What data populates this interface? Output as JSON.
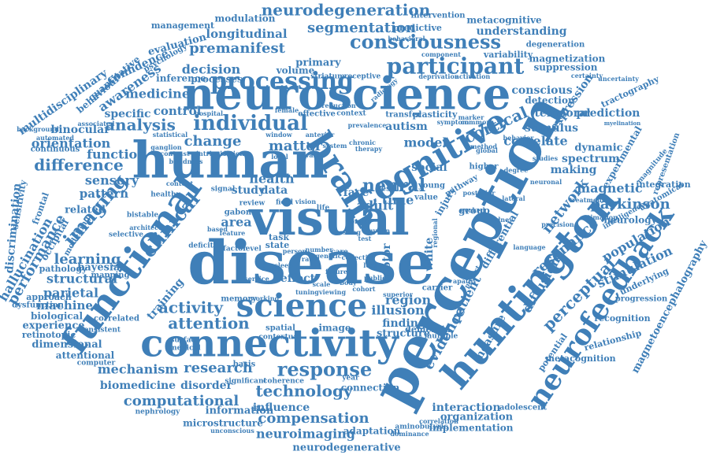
{
  "word_color": "#3f7fb8",
  "words": [
    "disease",
    "visual",
    "human",
    "neuroscience",
    "perception",
    "connectivity",
    "huntington",
    "functional",
    "brain",
    "cognitive",
    "science",
    "processing",
    "neurofeedback",
    "participant",
    "consciousness",
    "individual",
    "neural",
    "imaging",
    "clinical",
    "analysis",
    "difference",
    "cortical",
    "network",
    "perceptual",
    "parkinson",
    "resonance",
    "population",
    "magnetic",
    "diffusion",
    "stimulation",
    "neurodegeneration",
    "segmentation",
    "premanifest",
    "longitudinal",
    "medicine",
    "awareness",
    "control",
    "decision",
    "change",
    "matter",
    "health",
    "adult",
    "autism",
    "model",
    "social",
    "temporal",
    "conscious",
    "understanding",
    "metacognitive",
    "predictive",
    "primary",
    "management",
    "modulation",
    "intervention",
    "research",
    "response",
    "technology",
    "attention",
    "mechanism",
    "biomedicine",
    "disorder",
    "computational",
    "compensation",
    "neuroimaging",
    "neurodegenerative",
    "adaptation",
    "implementation",
    "organization",
    "interaction",
    "influence",
    "microstructure",
    "information",
    "evidence",
    "patient",
    "measure",
    "dementia",
    "finding",
    "structure",
    "illusion",
    "region",
    "activity",
    "training",
    "structural",
    "learning",
    "performance",
    "hallucination",
    "discrimination",
    "multidisciplinary",
    "orientation",
    "function",
    "sensory",
    "pattern",
    "related",
    "continuous",
    "binocular",
    "specific",
    "parietal",
    "machine",
    "biological",
    "experience",
    "dimensional",
    "attentional",
    "retinotopic",
    "approach",
    "pathology",
    "bayesian",
    "mapping",
    "area",
    "data",
    "study",
    "face",
    "time",
    "motor",
    "white",
    "injury",
    "group",
    "correlate",
    "stimulus",
    "expression",
    "prediction",
    "making",
    "spectrum",
    "dynamic",
    "experimental",
    "tractography",
    "neurology",
    "integration",
    "magnetoencephalography",
    "relationship",
    "recognition",
    "underlying",
    "metacognition",
    "potential",
    "detection",
    "magnetization",
    "suppression",
    "variability",
    "degeneration",
    "evaluation",
    "confidence",
    "psychology",
    "quantitative",
    "behaviour",
    "processes",
    "inference",
    "volume",
    "sensitivity",
    "frontal",
    "dysfunction",
    "occipital",
    "modelling",
    "hospital",
    "effective",
    "plasticity",
    "transfer",
    "connection",
    "adolescent",
    "dominance",
    "aminobutyric",
    "unconscious",
    "nephrology",
    "significant",
    "coherence",
    "year",
    "basis",
    "superior",
    "carrier",
    "apathy",
    "correlation",
    "multiple",
    "language",
    "precision",
    "estimation",
    "treatment",
    "anatomical",
    "intelligence",
    "progression",
    "magnitude",
    "representation",
    "myelination",
    "neuronal",
    "lateral",
    "posterior",
    "predict",
    "differential",
    "evoked",
    "behavioral",
    "component",
    "degree",
    "radiology",
    "deprivation",
    "receptive",
    "striatum",
    "certainty",
    "reduction",
    "context",
    "marker",
    "symptom",
    "common",
    "method",
    "behavior",
    "higher",
    "value",
    "young",
    "pathway",
    "result",
    "review",
    "vision",
    "field",
    "life",
    "task",
    "state",
    "person",
    "care",
    "level",
    "factor",
    "deficit",
    "based",
    "feature",
    "gabon",
    "signal",
    "content",
    "healthy",
    "selective",
    "bistable",
    "correlated",
    "consistent",
    "computer",
    "medical",
    "surface",
    "contextual",
    "spatial",
    "image",
    "memory",
    "working",
    "service",
    "future",
    "public",
    "effect",
    "associated",
    "statistical",
    "ganglion",
    "contrast",
    "intrinsic",
    "variation",
    "window",
    "anterior",
    "system",
    "chronic",
    "therapy",
    "background",
    "automated",
    "blindness",
    "architecture",
    "prevalence",
    "uncertainty",
    "activation",
    "female",
    "local",
    "rivalry",
    "studies",
    "kidney",
    "global",
    "regional",
    "myelin",
    "test",
    "resting",
    "normal",
    "number",
    "genetic",
    "collective",
    "rate",
    "loss",
    "sleep",
    "onset",
    "body",
    "scale",
    "cohort",
    "viewing",
    "tuning",
    "fixation",
    "motion",
    "object",
    "depth",
    "mind",
    "sense",
    "cell",
    "zone",
    "type",
    "size"
  ]
}
